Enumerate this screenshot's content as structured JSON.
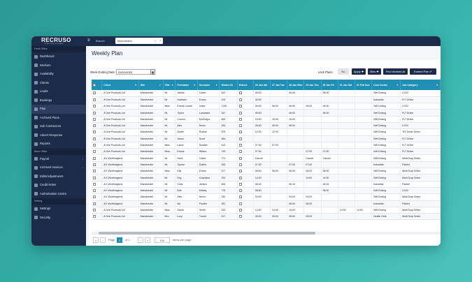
{
  "app": {
    "logo": "RECRUSO",
    "logo_sub": "WORKFORCE SOFTWARE"
  },
  "topbar": {
    "menu_icon": "≡",
    "branch_label": "Branch",
    "branch_value": "Manchester",
    "clear": "×",
    "caret": "▾"
  },
  "sidebar": {
    "sections": [
      {
        "title": "Front Office",
        "items": [
          {
            "label": "Dashboard",
            "active": false,
            "arrow": ""
          },
          {
            "label": "Workers",
            "active": false,
            "arrow": ""
          },
          {
            "label": "Availability",
            "active": false,
            "arrow": ""
          },
          {
            "label": "Clients",
            "active": false,
            "arrow": ""
          },
          {
            "label": "Leads",
            "active": false,
            "arrow": ""
          },
          {
            "label": "Bookings",
            "active": false,
            "arrow": ""
          },
          {
            "label": "Plan",
            "active": true,
            "arrow": ""
          },
          {
            "label": "Archived Plans",
            "active": false,
            "arrow": ""
          },
          {
            "label": "Sub Contractors",
            "active": false,
            "arrow": ""
          },
          {
            "label": "Advert Response",
            "active": false,
            "arrow": ""
          },
          {
            "label": "Reports",
            "active": false,
            "arrow": ""
          }
        ]
      },
      {
        "title": "Back Office",
        "items": [
          {
            "label": "Payroll",
            "active": false,
            "arrow": "›"
          },
          {
            "label": "Archived Invoices",
            "active": false,
            "arrow": "›"
          },
          {
            "label": "Edits/Adjustments",
            "active": false,
            "arrow": ""
          },
          {
            "label": "Credit Notes",
            "active": false,
            "arrow": ""
          },
          {
            "label": "Authorisation Centre",
            "active": false,
            "arrow": ""
          }
        ]
      },
      {
        "title": "Setting",
        "items": [
          {
            "label": "Settings",
            "active": false,
            "arrow": ""
          },
          {
            "label": "Security",
            "active": false,
            "arrow": "›"
          }
        ]
      }
    ]
  },
  "page": {
    "title": "Weekly Plan"
  },
  "filters": {
    "week_ending_label": "Week Ending Date:",
    "week_ending_value": "31/01/2020",
    "calendar_icon": "▦",
    "lock_label": "Lock Plans:",
    "lock_value": "No",
    "apply_label": "Apply ✚",
    "bins_label": "Bins ✚",
    "find_label": "Find Worked At",
    "extend_label": "Extend Plan ✔"
  },
  "table": {
    "headers": [
      "",
      "Client",
      "Site",
      "Title",
      "Forename",
      "Surname",
      "Worker ID",
      "Extend",
      "25 Jan Sat",
      "27 Jan Tue",
      "28 Jan Wed",
      "29 Jan Thu",
      "30 Jan Fri",
      "31 Jan Sat",
      "01 Feb Sun",
      "Cost Centre",
      "Job Category"
    ],
    "filter_icon": "▼",
    "rows": [
      [
        "A One Products Ltd",
        "Manchester",
        "Mr",
        "James",
        "Carter",
        "610",
        "",
        "06:00",
        "",
        "06:00",
        "",
        "06:00",
        "",
        "",
        "Self Driving",
        "LGV2"
      ],
      [
        "A One Products Ltd",
        "Manchester",
        "Mr",
        "Hariharn",
        "Evans",
        "415",
        "",
        "06:00",
        "",
        "",
        "",
        "",
        "",
        "",
        "Industrial",
        "FLT Driver"
      ],
      [
        "A One Products Ltd",
        "Manchester",
        "Miss",
        "Emma Louise",
        "Index",
        "7145",
        "",
        "06:00",
        "06:00",
        "06:00",
        "06:00",
        "06:00",
        "",
        "",
        "Self Driving",
        "LGV2"
      ],
      [
        "A One Products Ltd",
        "Manchester",
        "Mr",
        "Tyrion",
        "Lancaster",
        "347",
        "",
        "06:00",
        "",
        "06:00",
        "",
        "06:00",
        "",
        "",
        "Self Driving",
        "FLT Driver"
      ],
      [
        "A One Products Ltd",
        "Manchester",
        "Mr",
        "Connor",
        "McGregor",
        "663",
        "",
        "15:00",
        "15:00",
        "15:00",
        "",
        "",
        "",
        "",
        "Self Driving",
        "FLT Driver"
      ],
      [
        "A One Products Ltd",
        "Manchester",
        "Mr",
        "Alex",
        "Nixon",
        "334",
        "",
        "06:00",
        "06:00",
        "06:00",
        "",
        "",
        "",
        "",
        "Self Driving",
        "LGV2"
      ],
      [
        "A One Products Ltd",
        "Manchester",
        "Mr",
        "Andre",
        "Russel",
        "876",
        "",
        "12:00",
        "12:00",
        "",
        "",
        "",
        "",
        "",
        "Self Driving",
        "TIS Tower Driver"
      ],
      [
        "A One Products Ltd",
        "Manchester",
        "Mr",
        "Jason",
        "Scott",
        "364",
        "",
        "",
        "",
        "",
        "",
        "",
        "",
        "",
        "Self Driving",
        "FLT Driver"
      ],
      [
        "A One Products Ltd",
        "Manchester",
        "Miss",
        "Laura",
        "Smaller",
        "413",
        "",
        "07:00",
        "07:00",
        "",
        "",
        "",
        "",
        "",
        "Self Driving",
        "FLT Driver"
      ],
      [
        "A One Products Ltd",
        "Manchester",
        "Miss",
        "Emma",
        "Wilson",
        "749",
        "",
        "07:00",
        "",
        "",
        "07:00",
        "07:00",
        "",
        "",
        "Self Driving",
        "FLT Driver"
      ],
      [
        "A K Worthingtons",
        "Manchester",
        "Mr",
        "Heidi",
        "Carter",
        "771",
        "",
        "Cancel",
        "",
        "",
        "Cancel",
        "Cancel",
        "",
        "",
        "Self Driving",
        "Multi Drop Driver"
      ],
      [
        "A K Worthingtons",
        "Manchester",
        "Mr",
        "Tyrone",
        "Dobbs",
        "335",
        "",
        "07:00",
        "",
        "07:00",
        "07:00",
        "",
        "",
        "",
        "Industrial",
        "Packer"
      ],
      [
        "A K Worthingtons",
        "Manchester",
        "Miss",
        "Ella",
        "Evans",
        "577",
        "",
        "08:00",
        "06:00",
        "06:00",
        "06:00",
        "06:00",
        "",
        "",
        "Self Driving",
        "Multi Drop Driver"
      ],
      [
        "A K Worthingtons",
        "Manchester",
        "Mr",
        "Roy",
        "Guardiola",
        "333",
        "",
        "14:00",
        "",
        "",
        "14:00",
        "14:00",
        "",
        "",
        "Self Driving",
        "Multi Drop Driver"
      ],
      [
        "A K Worthingtons",
        "Manchester",
        "Mr",
        "Chris",
        "Jericho",
        "654",
        "",
        "06:15",
        "",
        "06:15",
        "",
        "06:15",
        "",
        "",
        "Industrial",
        "Packer"
      ],
      [
        "A K Worthingtons",
        "Manchester",
        "Mr",
        "Bob",
        "Marley",
        "776",
        "",
        "06:00",
        "",
        "",
        "",
        "06:00",
        "",
        "",
        "Self Driving",
        "LGV2"
      ],
      [
        "A K Worthingtons",
        "Manchester",
        "Mr",
        "Alex",
        "Nixon",
        "334",
        "",
        "04:00",
        "",
        "04:00",
        "04:00",
        "",
        "",
        "",
        "Self Driving",
        "Multi Drop Driver"
      ],
      [
        "A K Worthingtons",
        "Manchester",
        "Mr",
        "Ian",
        "Poulter",
        "387",
        "",
        "",
        "",
        "06:00",
        "06:00",
        "",
        "",
        "",
        "Industrial",
        "Packer"
      ],
      [
        "A One Products Ltd",
        "Manchester",
        "Miss",
        "Sarah",
        "Smith",
        "332",
        "",
        "14:00",
        "14:00",
        "14:00",
        "",
        "",
        "14:00",
        "14:00",
        "Self Driving",
        "Multi Drop Driver"
      ],
      [
        "A One Products Ltd",
        "Manchester",
        "Mrs",
        "Lucy",
        "Turner",
        "317",
        "",
        "05:00",
        "05:00",
        "05:00",
        "05:00",
        "",
        "",
        "",
        "Health Care",
        "Multi Drop Driver"
      ]
    ]
  },
  "pager": {
    "first": "«",
    "prev": "‹",
    "page_label": "Page",
    "page_value": "1",
    "of_label": "of 1",
    "next": "›",
    "last": "»",
    "per_page": "100",
    "per_page_label": "items per page"
  }
}
